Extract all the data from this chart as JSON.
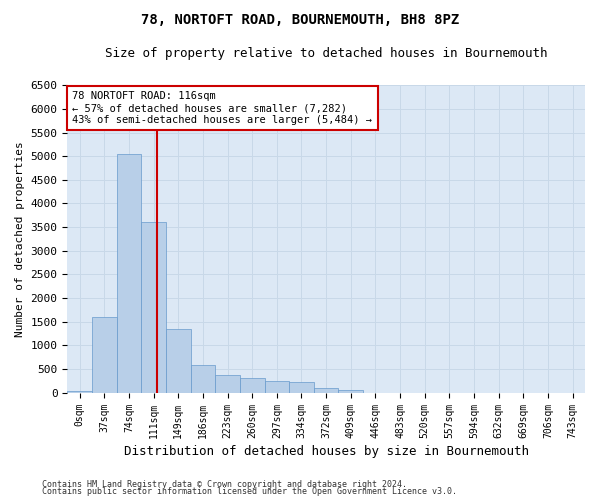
{
  "title": "78, NORTOFT ROAD, BOURNEMOUTH, BH8 8PZ",
  "subtitle": "Size of property relative to detached houses in Bournemouth",
  "xlabel": "Distribution of detached houses by size in Bournemouth",
  "ylabel": "Number of detached properties",
  "footer1": "Contains HM Land Registry data © Crown copyright and database right 2024.",
  "footer2": "Contains public sector information licensed under the Open Government Licence v3.0.",
  "bar_labels": [
    "0sqm",
    "37sqm",
    "74sqm",
    "111sqm",
    "149sqm",
    "186sqm",
    "223sqm",
    "260sqm",
    "297sqm",
    "334sqm",
    "372sqm",
    "409sqm",
    "446sqm",
    "483sqm",
    "520sqm",
    "557sqm",
    "594sqm",
    "632sqm",
    "669sqm",
    "706sqm",
    "743sqm"
  ],
  "bar_values": [
    30,
    1600,
    5050,
    3600,
    1350,
    580,
    370,
    305,
    240,
    230,
    90,
    60,
    0,
    0,
    0,
    0,
    0,
    0,
    0,
    0,
    0
  ],
  "bar_color": "#b8cfe8",
  "bar_edge_color": "#6699cc",
  "grid_color": "#c8d8e8",
  "bg_color": "#dce8f5",
  "marker_color": "#cc0000",
  "annotation_text": "78 NORTOFT ROAD: 116sqm\n← 57% of detached houses are smaller (7,282)\n43% of semi-detached houses are larger (5,484) →",
  "annotation_box_color": "#cc0000",
  "ylim": [
    0,
    6500
  ],
  "yticks": [
    0,
    500,
    1000,
    1500,
    2000,
    2500,
    3000,
    3500,
    4000,
    4500,
    5000,
    5500,
    6000,
    6500
  ]
}
